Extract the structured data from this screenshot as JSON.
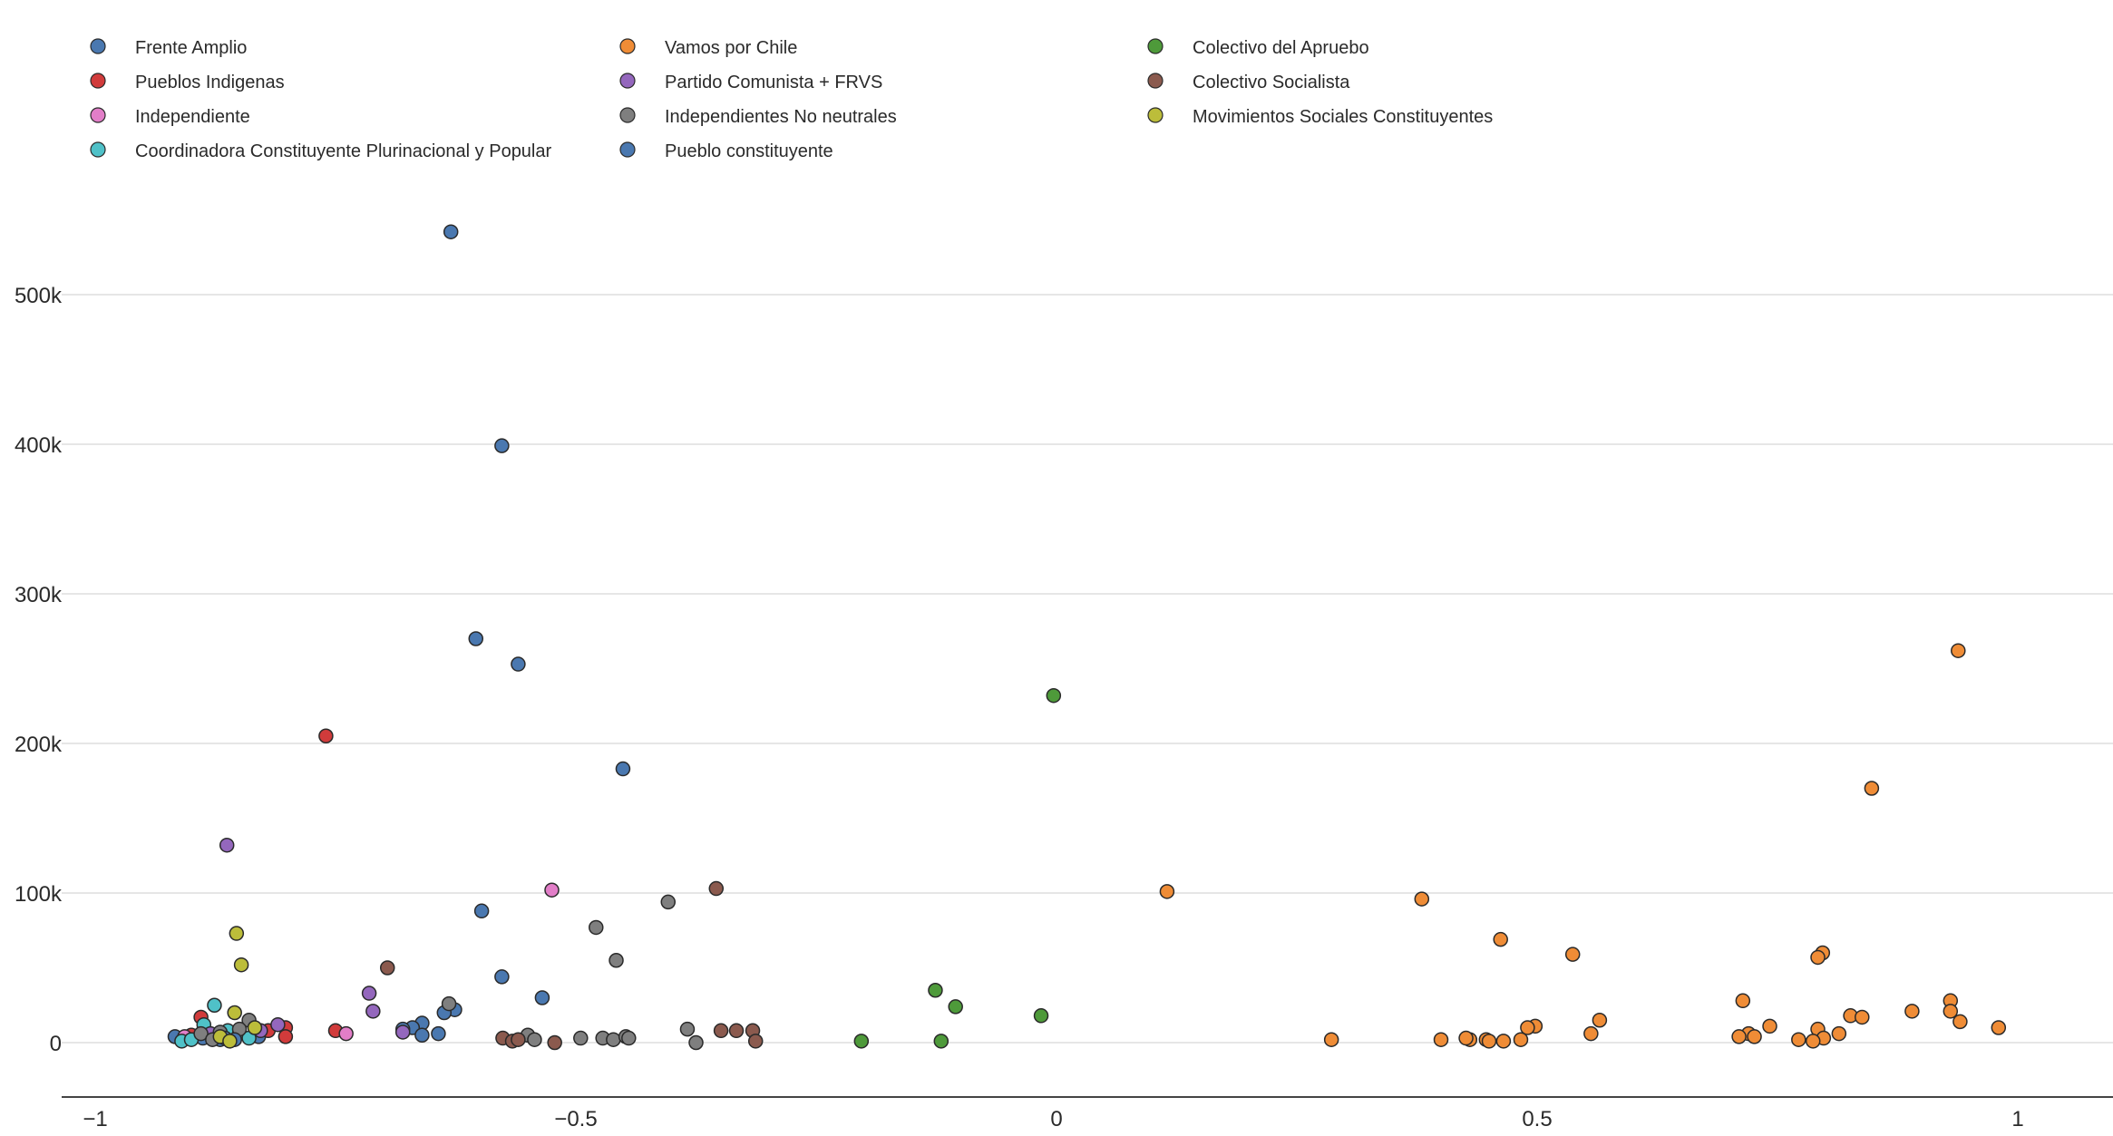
{
  "chart_data": {
    "type": "scatter",
    "title": "",
    "xlabel": "",
    "ylabel": "",
    "xlim": [
      -1.04,
      1.1
    ],
    "ylim": [
      -40000,
      590000
    ],
    "x_ticks": [
      -1,
      -0.5,
      0,
      0.5,
      1
    ],
    "x_tick_labels": [
      "−1",
      "−0.5",
      "0",
      "0.5",
      "1"
    ],
    "y_ticks": [
      0,
      100000,
      200000,
      300000,
      400000,
      500000
    ],
    "y_tick_labels": [
      "0",
      "100k",
      "200k",
      "300k",
      "400k",
      "500k"
    ],
    "grid": true,
    "legend_position": "top",
    "series": [
      {
        "name": "Frente Amplio",
        "color": "#4a78b0",
        "points": [
          [
            -0.63,
            542000
          ],
          [
            -0.577,
            399000
          ],
          [
            -0.604,
            270000
          ],
          [
            -0.56,
            253000
          ],
          [
            -0.451,
            183000
          ],
          [
            -0.598,
            88000
          ],
          [
            -0.577,
            44000
          ],
          [
            -0.535,
            30000
          ],
          [
            -0.626,
            22000
          ],
          [
            -0.637,
            20000
          ],
          [
            -0.66,
            13000
          ],
          [
            -0.67,
            10000
          ],
          [
            -0.68,
            9000
          ],
          [
            -0.643,
            6000
          ],
          [
            -0.66,
            5000
          ],
          [
            -0.917,
            4000
          ],
          [
            -0.905,
            3000
          ],
          [
            -0.888,
            3000
          ],
          [
            -0.87,
            2000
          ],
          [
            -0.86,
            4000
          ],
          [
            -0.83,
            4000
          ]
        ]
      },
      {
        "name": "Pueblos Indigenas",
        "color": "#d13b3b",
        "points": [
          [
            -0.76,
            205000
          ],
          [
            -0.75,
            8000
          ],
          [
            -0.89,
            17000
          ],
          [
            -0.802,
            10000
          ],
          [
            -0.802,
            4000
          ],
          [
            -0.82,
            8000
          ],
          [
            -0.9,
            5000
          ]
        ]
      },
      {
        "name": "Independiente",
        "color": "#e27ec8",
        "points": [
          [
            -0.525,
            102000
          ],
          [
            -0.739,
            6000
          ],
          [
            -0.907,
            4000
          ],
          [
            -0.86,
            5000
          ]
        ]
      },
      {
        "name": "Coordinadora Constituyente Plurinacional y Popular",
        "color": "#4fc1c8",
        "points": [
          [
            -0.876,
            25000
          ],
          [
            -0.887,
            12000
          ],
          [
            -0.91,
            1000
          ],
          [
            -0.9,
            2000
          ],
          [
            -0.862,
            8000
          ],
          [
            -0.85,
            6000
          ],
          [
            -0.84,
            3000
          ]
        ]
      },
      {
        "name": "Vamos por Chile",
        "color": "#ef8c36",
        "points": [
          [
            0.938,
            262000
          ],
          [
            0.848,
            170000
          ],
          [
            0.115,
            101000
          ],
          [
            0.38,
            96000
          ],
          [
            0.462,
            69000
          ],
          [
            0.537,
            59000
          ],
          [
            0.797,
            60000
          ],
          [
            0.792,
            57000
          ],
          [
            0.714,
            28000
          ],
          [
            0.93,
            28000
          ],
          [
            0.93,
            21000
          ],
          [
            0.89,
            21000
          ],
          [
            0.826,
            18000
          ],
          [
            0.838,
            17000
          ],
          [
            0.565,
            15000
          ],
          [
            0.94,
            14000
          ],
          [
            0.742,
            11000
          ],
          [
            0.498,
            11000
          ],
          [
            0.49,
            10000
          ],
          [
            0.98,
            10000
          ],
          [
            0.792,
            9000
          ],
          [
            0.72,
            6000
          ],
          [
            0.556,
            6000
          ],
          [
            0.814,
            6000
          ],
          [
            0.71,
            4000
          ],
          [
            0.726,
            4000
          ],
          [
            0.798,
            3000
          ],
          [
            0.772,
            2000
          ],
          [
            0.787,
            1000
          ],
          [
            0.286,
            2000
          ],
          [
            0.4,
            2000
          ],
          [
            0.43,
            2000
          ],
          [
            0.426,
            3000
          ],
          [
            0.447,
            2000
          ],
          [
            0.45,
            1000
          ],
          [
            0.465,
            1000
          ],
          [
            0.483,
            2000
          ]
        ]
      },
      {
        "name": "Partido Comunista + FRVS",
        "color": "#9467bd",
        "points": [
          [
            -0.863,
            132000
          ],
          [
            -0.715,
            33000
          ],
          [
            -0.711,
            21000
          ],
          [
            -0.68,
            7000
          ],
          [
            -0.81,
            12000
          ],
          [
            -0.828,
            8000
          ],
          [
            -0.88,
            6000
          ]
        ]
      },
      {
        "name": "Independientes No neutrales",
        "color": "#7f7f7f",
        "points": [
          [
            -0.404,
            94000
          ],
          [
            -0.479,
            77000
          ],
          [
            -0.458,
            55000
          ],
          [
            -0.632,
            26000
          ],
          [
            -0.384,
            9000
          ],
          [
            -0.375,
            0
          ],
          [
            -0.55,
            5000
          ],
          [
            -0.543,
            2000
          ],
          [
            -0.495,
            3000
          ],
          [
            -0.472,
            3000
          ],
          [
            -0.461,
            2000
          ],
          [
            -0.448,
            4000
          ],
          [
            -0.445,
            3000
          ],
          [
            -0.84,
            15000
          ],
          [
            -0.85,
            9000
          ],
          [
            -0.87,
            7000
          ],
          [
            -0.89,
            6000
          ],
          [
            -0.878,
            2000
          ]
        ]
      },
      {
        "name": "Pueblo constituyente",
        "color": "#4a78b0",
        "points": [
          [
            -0.865,
            3000
          ],
          [
            -0.855,
            2000
          ]
        ]
      },
      {
        "name": "Colectivo del Apruebo",
        "color": "#4e9a3a",
        "points": [
          [
            -0.003,
            232000
          ],
          [
            -0.126,
            35000
          ],
          [
            -0.105,
            24000
          ],
          [
            -0.016,
            18000
          ],
          [
            -0.203,
            1000
          ],
          [
            -0.12,
            1000
          ]
        ]
      },
      {
        "name": "Colectivo Socialista",
        "color": "#8b5a4e",
        "points": [
          [
            -0.354,
            103000
          ],
          [
            -0.696,
            50000
          ],
          [
            -0.349,
            8000
          ],
          [
            -0.333,
            8000
          ],
          [
            -0.316,
            8000
          ],
          [
            -0.576,
            3000
          ],
          [
            -0.566,
            1000
          ],
          [
            -0.313,
            1000
          ],
          [
            -0.522,
            0
          ],
          [
            -0.56,
            2000
          ]
        ]
      },
      {
        "name": "Movimientos Sociales Constituyentes",
        "color": "#bcbd3a",
        "points": [
          [
            -0.853,
            73000
          ],
          [
            -0.848,
            52000
          ],
          [
            -0.855,
            20000
          ],
          [
            -0.834,
            10000
          ],
          [
            -0.87,
            4000
          ],
          [
            -0.86,
            1000
          ]
        ]
      }
    ]
  }
}
